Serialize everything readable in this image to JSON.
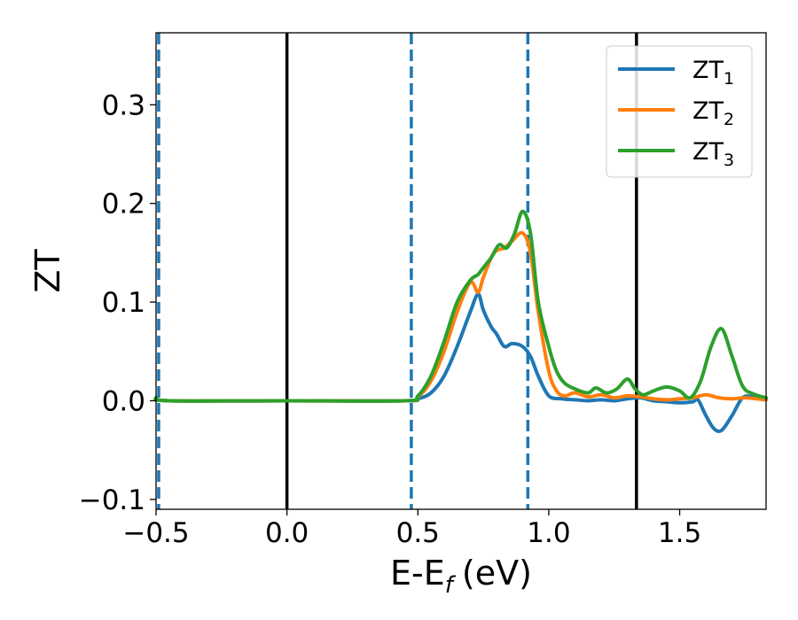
{
  "chart_data": {
    "type": "line",
    "xlabel": "E-E",
    "xlabel_sub": "f",
    "xlabel_unit": "(eV)",
    "ylabel": "ZT",
    "xlim": [
      -0.5,
      1.83
    ],
    "ylim": [
      -0.11,
      0.373
    ],
    "xticks": [
      -0.5,
      0.0,
      0.5,
      1.0,
      1.5
    ],
    "xtick_labels": [
      "−0.5",
      "0.0",
      "0.5",
      "1.0",
      "1.5"
    ],
    "yticks": [
      -0.1,
      0.0,
      0.1,
      0.2,
      0.3
    ],
    "ytick_labels": [
      "−0.1",
      "0.0",
      "0.1",
      "0.2",
      "0.3"
    ],
    "legend_position": "top-right",
    "grid": false,
    "vertical_lines": [
      {
        "x": -0.49,
        "style": "dashed",
        "color": "#1f77b4"
      },
      {
        "x": 0.0,
        "style": "solid",
        "color": "#000000"
      },
      {
        "x": 0.475,
        "style": "dashed",
        "color": "#1f77b4"
      },
      {
        "x": 0.92,
        "style": "dashed",
        "color": "#1f77b4"
      },
      {
        "x": 1.335,
        "style": "solid",
        "color": "#000000"
      }
    ],
    "series": [
      {
        "name": "ZT",
        "sub": "1",
        "color": "#1f77b4",
        "x": [
          -0.5,
          -0.45,
          0.0,
          0.45,
          0.5,
          0.55,
          0.6,
          0.65,
          0.7,
          0.73,
          0.75,
          0.78,
          0.8,
          0.83,
          0.86,
          0.9,
          0.93,
          0.96,
          1.0,
          1.05,
          1.1,
          1.15,
          1.2,
          1.25,
          1.3,
          1.35,
          1.4,
          1.45,
          1.5,
          1.55,
          1.57,
          1.6,
          1.63,
          1.66,
          1.7,
          1.74,
          1.78,
          1.83
        ],
        "y": [
          0.003,
          0.0,
          0.0,
          0.0,
          0.002,
          0.008,
          0.025,
          0.055,
          0.09,
          0.108,
          0.092,
          0.075,
          0.068,
          0.055,
          0.058,
          0.055,
          0.045,
          0.025,
          0.005,
          0.002,
          0.001,
          0.0,
          0.001,
          0.0,
          0.002,
          0.003,
          0.0,
          -0.001,
          -0.002,
          -0.001,
          0.001,
          -0.015,
          -0.028,
          -0.03,
          -0.015,
          0.003,
          0.004,
          0.002
        ]
      },
      {
        "name": "ZT",
        "sub": "2",
        "color": "#ff7f0e",
        "x": [
          -0.5,
          -0.45,
          0.0,
          0.45,
          0.5,
          0.55,
          0.6,
          0.65,
          0.7,
          0.73,
          0.75,
          0.78,
          0.8,
          0.83,
          0.86,
          0.9,
          0.93,
          0.96,
          1.0,
          1.03,
          1.06,
          1.1,
          1.15,
          1.2,
          1.25,
          1.3,
          1.35,
          1.4,
          1.45,
          1.5,
          1.55,
          1.6,
          1.65,
          1.7,
          1.75,
          1.83
        ],
        "y": [
          0.003,
          0.0,
          0.0,
          0.0,
          0.004,
          0.02,
          0.05,
          0.09,
          0.12,
          0.11,
          0.125,
          0.145,
          0.152,
          0.155,
          0.162,
          0.17,
          0.15,
          0.09,
          0.03,
          0.01,
          0.005,
          0.008,
          0.004,
          0.006,
          0.003,
          0.005,
          0.004,
          0.002,
          0.001,
          0.002,
          0.003,
          0.006,
          0.003,
          0.002,
          0.003,
          0.001
        ]
      },
      {
        "name": "ZT",
        "sub": "3",
        "color": "#2ca02c",
        "x": [
          -0.5,
          -0.45,
          0.0,
          0.45,
          0.5,
          0.55,
          0.6,
          0.65,
          0.7,
          0.73,
          0.75,
          0.78,
          0.81,
          0.84,
          0.87,
          0.9,
          0.93,
          0.96,
          1.0,
          1.03,
          1.06,
          1.1,
          1.15,
          1.18,
          1.22,
          1.26,
          1.3,
          1.33,
          1.36,
          1.4,
          1.45,
          1.5,
          1.54,
          1.58,
          1.62,
          1.66,
          1.7,
          1.74,
          1.78,
          1.83
        ],
        "y": [
          0.003,
          0.0,
          0.0,
          0.0,
          0.005,
          0.025,
          0.06,
          0.1,
          0.122,
          0.128,
          0.135,
          0.145,
          0.158,
          0.155,
          0.17,
          0.192,
          0.17,
          0.1,
          0.055,
          0.03,
          0.018,
          0.012,
          0.008,
          0.013,
          0.008,
          0.012,
          0.022,
          0.012,
          0.006,
          0.01,
          0.014,
          0.01,
          0.003,
          0.02,
          0.055,
          0.073,
          0.045,
          0.015,
          0.007,
          0.003
        ]
      }
    ]
  }
}
